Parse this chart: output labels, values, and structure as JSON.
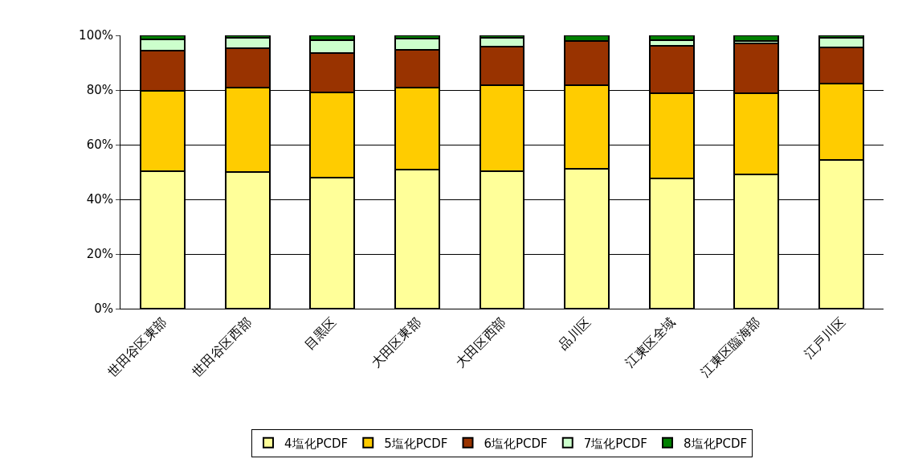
{
  "chart_data": {
    "type": "bar",
    "stacked": true,
    "categories": [
      "世田谷区東部",
      "世田谷区西部",
      "目黒区",
      "大田区東部",
      "大田区西部",
      "品川区",
      "江東区全域",
      "江東区臨海部",
      "江戸川区"
    ],
    "series": [
      {
        "name": "4塩化PCDF",
        "color": "#ffff99",
        "values": [
          50.4,
          50.1,
          47.9,
          51.0,
          50.4,
          51.3,
          47.6,
          49.0,
          54.3
        ]
      },
      {
        "name": "5塩化PCDF",
        "color": "#ffcc00",
        "values": [
          29.4,
          30.9,
          31.1,
          29.8,
          31.4,
          30.5,
          31.2,
          29.9,
          28.1
        ]
      },
      {
        "name": "6塩化PCDF",
        "color": "#993300",
        "values": [
          14.6,
          14.2,
          14.6,
          13.9,
          14.0,
          16.2,
          17.5,
          18.3,
          13.1
        ]
      },
      {
        "name": "7塩化PCDF",
        "color": "#ccffcc",
        "values": [
          4.2,
          4.0,
          4.7,
          4.2,
          3.4,
          0,
          2.0,
          0.6,
          3.7
        ]
      },
      {
        "name": "8塩化PCDF",
        "color": "#008000",
        "values": [
          1.4,
          0.8,
          1.7,
          1.1,
          0.8,
          2.0,
          1.7,
          2.2,
          0.8
        ]
      }
    ],
    "ylim": [
      0,
      100
    ],
    "yticks": [
      {
        "value": 0,
        "label": "0%"
      },
      {
        "value": 20,
        "label": "20%"
      },
      {
        "value": 40,
        "label": "40%"
      },
      {
        "value": 60,
        "label": "60%"
      },
      {
        "value": 80,
        "label": "80%"
      },
      {
        "value": 100,
        "label": "100%"
      }
    ],
    "grid": "y",
    "legend": "bottom"
  }
}
